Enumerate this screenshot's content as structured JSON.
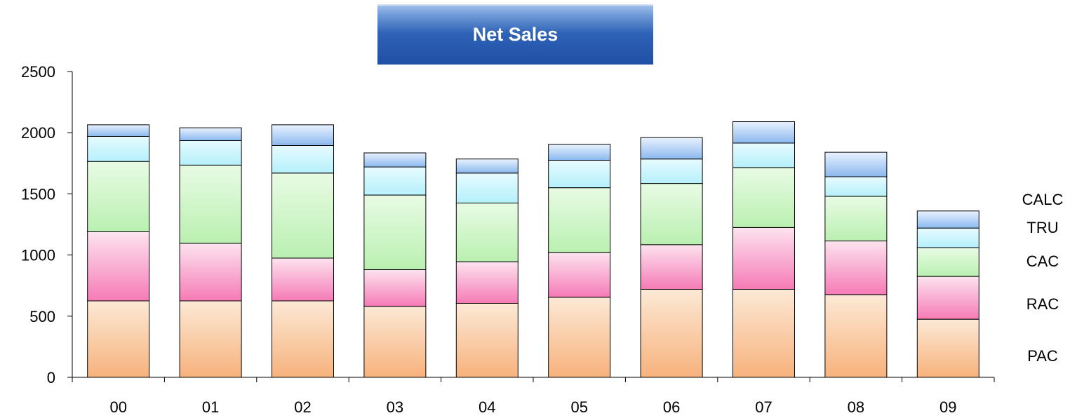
{
  "chart_data": {
    "type": "bar",
    "stacked": true,
    "title": "Net Sales",
    "categories": [
      "00",
      "01",
      "02",
      "03",
      "04",
      "05",
      "06",
      "07",
      "08",
      "09"
    ],
    "ylim": [
      0,
      2500
    ],
    "yticks": [
      "0",
      "500",
      "1000",
      "1500",
      "2000",
      "2500"
    ],
    "grid": false,
    "legend_position": "right",
    "series": [
      {
        "name": "PAC",
        "values": [
          625,
          625,
          625,
          580,
          605,
          655,
          720,
          720,
          675,
          475
        ],
        "color_top": "#fce9d6",
        "color_bottom": "#f7b27c"
      },
      {
        "name": "RAC",
        "values": [
          565,
          470,
          350,
          300,
          340,
          365,
          365,
          505,
          440,
          350
        ],
        "color_top": "#fde3ef",
        "color_bottom": "#f57bb6"
      },
      {
        "name": "CAC",
        "values": [
          575,
          640,
          695,
          610,
          480,
          530,
          500,
          490,
          365,
          235
        ],
        "color_top": "#e8fbe4",
        "color_bottom": "#baf0b1"
      },
      {
        "name": "TRU",
        "values": [
          205,
          200,
          225,
          230,
          245,
          225,
          200,
          200,
          160,
          160
        ],
        "color_top": "#e7fbff",
        "color_bottom": "#b5f0fb"
      },
      {
        "name": "CALC",
        "values": [
          95,
          105,
          170,
          115,
          115,
          130,
          175,
          175,
          200,
          140
        ],
        "color_top": "#e9f2ff",
        "color_bottom": "#8bb8ee"
      }
    ]
  }
}
